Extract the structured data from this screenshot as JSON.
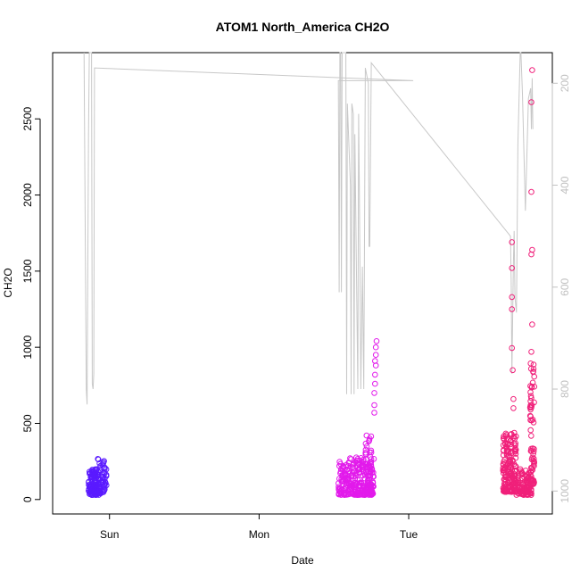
{
  "chart_data": {
    "type": "scatter",
    "title": "ATOM1 North_America CH2O",
    "xlabel": "Date",
    "ylabel": "CH2O",
    "x_tick_labels": [
      "Sun",
      "Mon",
      "Tue"
    ],
    "x_tick_positions_days": [
      1,
      2,
      3
    ],
    "xlim_days": [
      0.62,
      3.96
    ],
    "ylim": [
      -95,
      2935
    ],
    "y_ticks": [
      0,
      500,
      1000,
      1500,
      2000,
      2500
    ],
    "y2_label": "",
    "y2_ticks": [
      200,
      400,
      600,
      800,
      1000
    ],
    "y2lim_reversed": [
      1045,
      140
    ],
    "grid": false,
    "legend": "none",
    "colors": {
      "line": "#c8c8c8",
      "right_axis": "#c0c0c0",
      "cluster_1": "#5a1aff",
      "cluster_2": "#e21aeb",
      "cluster_3": "#f0207a"
    },
    "series": [
      {
        "kind": "points",
        "color": "#5a1aff",
        "groups": [
          {
            "xmin": 0.86,
            "xmax": 0.93,
            "ymin": 30,
            "ymax": 200,
            "n": 120
          },
          {
            "xmin": 0.92,
            "xmax": 0.98,
            "ymin": 40,
            "ymax": 270,
            "n": 50
          }
        ]
      },
      {
        "kind": "points",
        "color": "#e21aeb",
        "groups": [
          {
            "xmin": 2.53,
            "xmax": 2.77,
            "ymin": 30,
            "ymax": 280,
            "n": 260
          },
          {
            "xmin": 2.71,
            "xmax": 2.75,
            "ymin": 40,
            "ymax": 440,
            "n": 40
          }
        ],
        "high_points": [
          [
            2.77,
            570
          ],
          [
            2.77,
            620
          ],
          [
            2.77,
            700
          ],
          [
            2.775,
            760
          ],
          [
            2.775,
            820
          ],
          [
            2.78,
            880
          ],
          [
            2.78,
            950
          ],
          [
            2.78,
            1000
          ],
          [
            2.785,
            1040
          ],
          [
            2.775,
            910
          ]
        ]
      },
      {
        "kind": "points",
        "color": "#f0207a",
        "groups": [
          {
            "xmin": 3.63,
            "xmax": 3.72,
            "ymin": 50,
            "ymax": 450,
            "n": 180
          },
          {
            "xmin": 3.72,
            "xmax": 3.82,
            "ymin": 30,
            "ymax": 200,
            "n": 100
          },
          {
            "xmin": 3.81,
            "xmax": 3.84,
            "ymin": 100,
            "ymax": 900,
            "n": 70
          }
        ],
        "high_points": [
          [
            3.69,
            1690
          ],
          [
            3.69,
            1520
          ],
          [
            3.69,
            1330
          ],
          [
            3.69,
            1250
          ],
          [
            3.69,
            995
          ],
          [
            3.825,
            2820
          ],
          [
            3.82,
            2610
          ],
          [
            3.82,
            2020
          ],
          [
            3.825,
            1640
          ],
          [
            3.82,
            1610
          ],
          [
            3.825,
            1150
          ],
          [
            3.82,
            970
          ],
          [
            3.695,
            850
          ],
          [
            3.7,
            660
          ],
          [
            3.7,
            600
          ]
        ]
      },
      {
        "kind": "line",
        "color": "#c8c8c8",
        "axis": "right",
        "points": [
          [
            0.83,
            140
          ],
          [
            0.845,
            800
          ],
          [
            0.85,
            830
          ],
          [
            0.855,
            560
          ],
          [
            0.86,
            300
          ],
          [
            0.865,
            140
          ],
          [
            0.88,
            140
          ],
          [
            0.885,
            790
          ],
          [
            0.89,
            800
          ],
          [
            0.895,
            770
          ],
          [
            0.9,
            170
          ],
          [
            3.03,
            195
          ],
          [
            2.53,
            195
          ],
          [
            2.535,
            610
          ],
          [
            2.54,
            140
          ],
          [
            2.545,
            140
          ],
          [
            2.55,
            610
          ],
          [
            2.555,
            140
          ],
          [
            2.58,
            140
          ],
          [
            2.585,
            810
          ],
          [
            2.59,
            240
          ],
          [
            2.61,
            400
          ],
          [
            2.615,
            810
          ],
          [
            2.62,
            240
          ],
          [
            2.63,
            260
          ],
          [
            2.635,
            810
          ],
          [
            2.64,
            300
          ],
          [
            2.66,
            800
          ],
          [
            2.665,
            260
          ],
          [
            2.67,
            400
          ],
          [
            2.68,
            800
          ],
          [
            2.69,
            560
          ],
          [
            2.7,
            800
          ],
          [
            2.71,
            170
          ],
          [
            2.73,
            200
          ],
          [
            2.735,
            520
          ],
          [
            2.74,
            520
          ],
          [
            2.75,
            160
          ],
          [
            3.68,
            500
          ],
          [
            3.685,
            590
          ],
          [
            3.69,
            770
          ],
          [
            3.7,
            550
          ],
          [
            3.705,
            490
          ],
          [
            3.71,
            620
          ],
          [
            3.72,
            650
          ],
          [
            3.73,
            320
          ],
          [
            3.745,
            140
          ],
          [
            3.75,
            140
          ],
          [
            3.76,
            220
          ],
          [
            3.78,
            450
          ],
          [
            3.8,
            230
          ],
          [
            3.815,
            210
          ],
          [
            3.82,
            290
          ],
          [
            3.825,
            190
          ],
          [
            3.83,
            290
          ]
        ]
      }
    ]
  }
}
